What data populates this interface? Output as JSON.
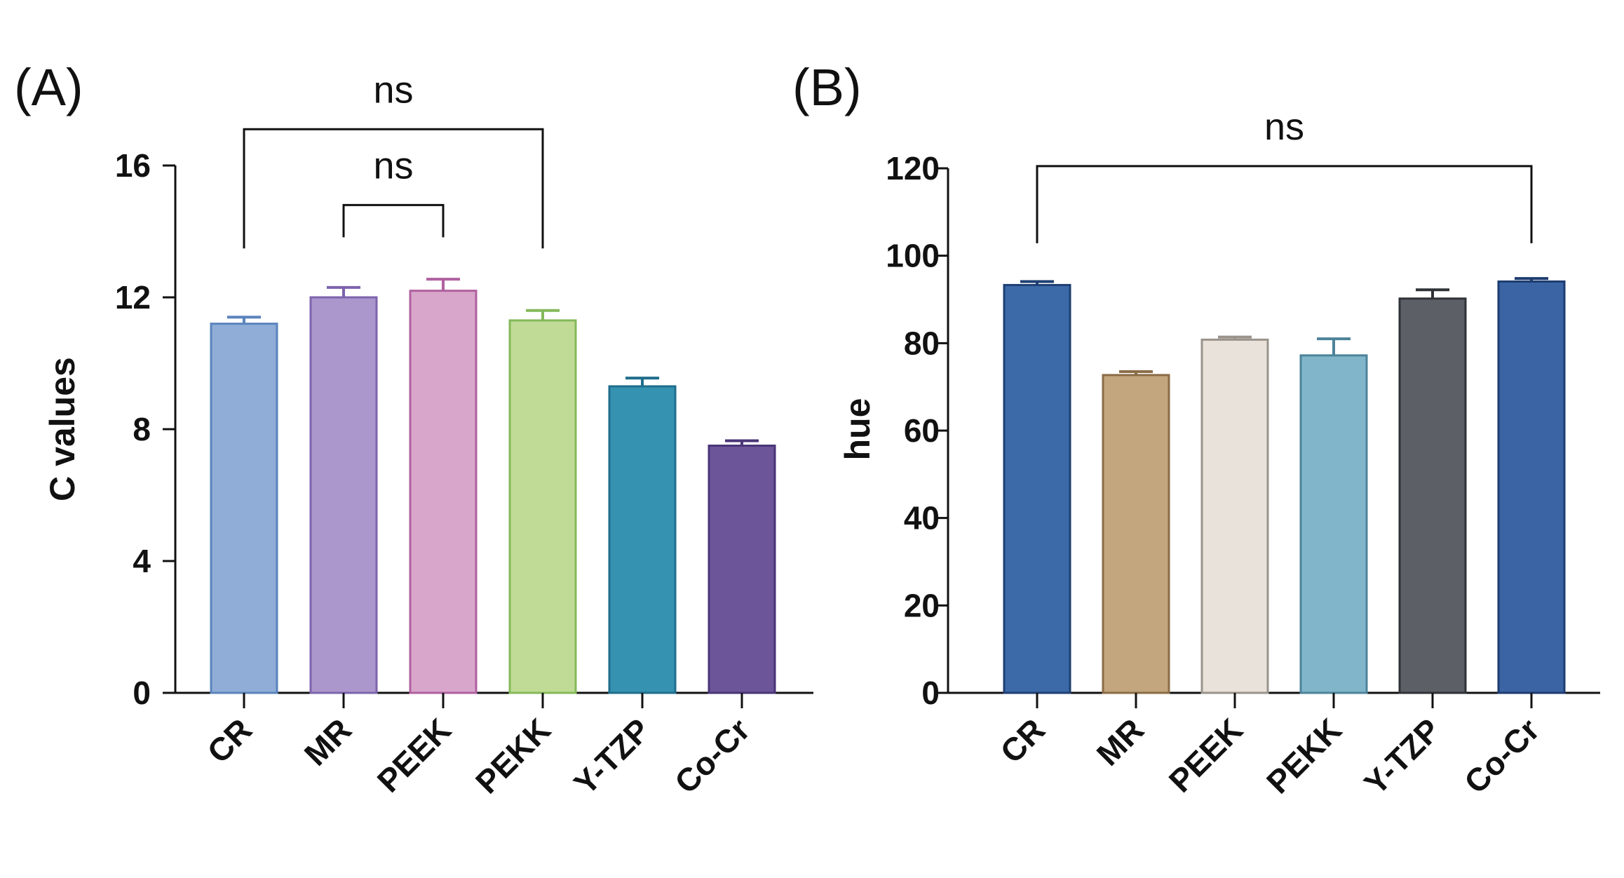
{
  "chart_data": [
    {
      "panel": "(A)",
      "type": "bar",
      "ylabel": "C values",
      "xlabel": "",
      "ylim": [
        0,
        16
      ],
      "yticks": [
        0,
        4,
        8,
        12,
        16
      ],
      "categories": [
        "CR",
        "MR",
        "PEEK",
        "PEKK",
        "Y-TZP",
        "Co-Cr"
      ],
      "values": [
        11.2,
        12.0,
        12.2,
        11.3,
        9.3,
        7.5
      ],
      "errors": [
        0.2,
        0.3,
        0.35,
        0.3,
        0.25,
        0.15
      ],
      "colors": [
        "#8fadd6",
        "#ab97cb",
        "#d8a6ca",
        "#c0db96",
        "#3592b0",
        "#6c5699"
      ],
      "edge_colors": [
        "#5b84bd",
        "#7e63ad",
        "#b061a0",
        "#84b85a",
        "#1f6e8c",
        "#4a3578"
      ],
      "significance": [
        {
          "from": "CR",
          "to": "PEKK",
          "label": "ns",
          "y": 17.1
        },
        {
          "from": "MR",
          "to": "PEEK",
          "label": "ns",
          "y": 14.8
        }
      ]
    },
    {
      "panel": "(B)",
      "type": "bar",
      "ylabel": "hue",
      "xlabel": "",
      "ylim": [
        0,
        120
      ],
      "yticks": [
        0,
        20,
        40,
        60,
        80,
        100,
        120
      ],
      "categories": [
        "CR",
        "MR",
        "PEEK",
        "PEKK",
        "Y-TZP",
        "Co-Cr"
      ],
      "values": [
        93.3,
        72.7,
        80.8,
        77.2,
        90.2,
        94.1
      ],
      "errors": [
        0.8,
        0.8,
        0.6,
        3.8,
        2.0,
        0.7
      ],
      "colors": [
        "#3c6aa8",
        "#c3a67d",
        "#e8e2da",
        "#80b5ca",
        "#5c6066",
        "#3b64a4"
      ],
      "edge_colors": [
        "#1e3f72",
        "#8a6c46",
        "#9a938b",
        "#4d8399",
        "#2f3236",
        "#1d3c70"
      ],
      "significance": [
        {
          "from": "CR",
          "to": "Co-Cr",
          "label": "ns",
          "y": 120.5
        }
      ]
    }
  ]
}
